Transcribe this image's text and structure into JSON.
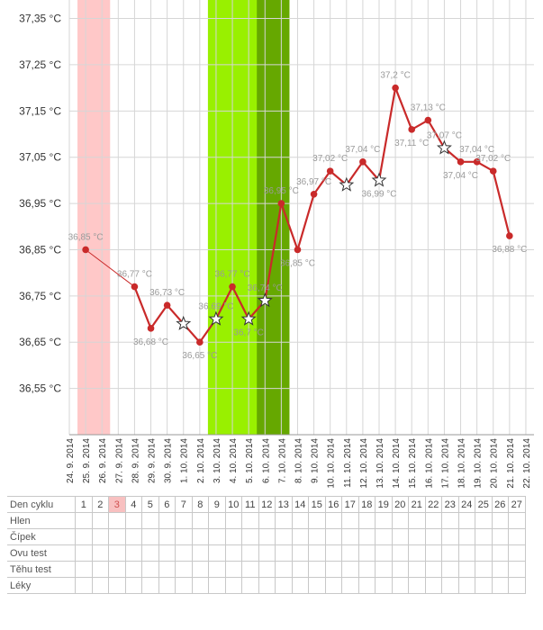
{
  "chart_data": {
    "type": "line",
    "y_unit": " °C",
    "ylim": [
      36.45,
      37.39
    ],
    "yticks": [
      "37,35 °C",
      "37,25 °C",
      "37,15 °C",
      "37,05 °C",
      "36,95 °C",
      "36,85 °C",
      "36,75 °C",
      "36,65 °C",
      "36,55 °C"
    ],
    "ytick_values": [
      37.35,
      37.25,
      37.15,
      37.05,
      36.95,
      36.85,
      36.75,
      36.65,
      36.55
    ],
    "x_dates": [
      "24. 9. 2014",
      "25. 9. 2014",
      "26. 9. 2014",
      "27. 9. 2014",
      "28. 9. 2014",
      "29. 9. 2014",
      "30. 9. 2014",
      "1. 10. 2014",
      "2. 10. 2014",
      "3. 10. 2014",
      "4. 10. 2014",
      "5. 10. 2014",
      "6. 10. 2014",
      "7. 10. 2014",
      "8. 10. 2014",
      "9. 10. 2014",
      "10. 10. 2014",
      "11. 10. 2014",
      "12. 10. 2014",
      "13. 10. 2014",
      "14. 10. 2014",
      "15. 10. 2014",
      "16. 10. 2014",
      "17. 10. 2014",
      "18. 10. 2014",
      "19. 10. 2014",
      "20. 10. 2014",
      "21. 10. 2014",
      "22. 10. 2014"
    ],
    "points": [
      {
        "x": "25. 9. 2014",
        "y": 36.85,
        "label": "36,85 °C",
        "marker": "dot"
      },
      {
        "x": "28. 9. 2014",
        "y": 36.77,
        "label": "36,77 °C",
        "marker": "dot"
      },
      {
        "x": "29. 9. 2014",
        "y": 36.68,
        "label": "36,68 °C",
        "marker": "dot"
      },
      {
        "x": "30. 9. 2014",
        "y": 36.73,
        "label": "36,73 °C",
        "marker": "dot"
      },
      {
        "x": "1. 10. 2014",
        "y": 36.69,
        "label": "",
        "marker": "star"
      },
      {
        "x": "2. 10. 2014",
        "y": 36.65,
        "label": "36,65 °C",
        "marker": "dot"
      },
      {
        "x": "3. 10. 2014",
        "y": 36.7,
        "label": "36,69 °C",
        "marker": "star"
      },
      {
        "x": "4. 10. 2014",
        "y": 36.77,
        "label": "36,77 °C",
        "marker": "dot"
      },
      {
        "x": "5. 10. 2014",
        "y": 36.7,
        "label": "36,7 °C",
        "marker": "star"
      },
      {
        "x": "6. 10. 2014",
        "y": 36.74,
        "label": "36,74 °C",
        "marker": "star"
      },
      {
        "x": "7. 10. 2014",
        "y": 36.95,
        "label": "36,95 °C",
        "marker": "dot"
      },
      {
        "x": "8. 10. 2014",
        "y": 36.85,
        "label": "36,85 °C",
        "marker": "dot"
      },
      {
        "x": "9. 10. 2014",
        "y": 36.97,
        "label": "36,97 °C",
        "marker": "dot"
      },
      {
        "x": "10. 10. 2014",
        "y": 37.02,
        "label": "37,02 °C",
        "marker": "dot"
      },
      {
        "x": "11. 10. 2014",
        "y": 36.99,
        "label": "",
        "marker": "star"
      },
      {
        "x": "12. 10. 2014",
        "y": 37.04,
        "label": "37,04 °C",
        "marker": "dot"
      },
      {
        "x": "13. 10. 2014",
        "y": 37.0,
        "label": "36,99 °C",
        "marker": "star"
      },
      {
        "x": "14. 10. 2014",
        "y": 37.2,
        "label": "37,2 °C",
        "marker": "dot"
      },
      {
        "x": "15. 10. 2014",
        "y": 37.11,
        "label": "37,11 °C",
        "marker": "dot"
      },
      {
        "x": "16. 10. 2014",
        "y": 37.13,
        "label": "37,13 °C",
        "marker": "dot"
      },
      {
        "x": "17. 10. 2014",
        "y": 37.07,
        "label": "37,07 °C",
        "marker": "star"
      },
      {
        "x": "18. 10. 2014",
        "y": 37.04,
        "label": "37,04 °C",
        "marker": "dot"
      },
      {
        "x": "19. 10. 2014",
        "y": 37.04,
        "label": "37,04 °C",
        "marker": "dot"
      },
      {
        "x": "20. 10. 2014",
        "y": 37.02,
        "label": "37,02 °C",
        "marker": "dot"
      },
      {
        "x": "21. 10. 2014",
        "y": 36.88,
        "label": "36,88 °C",
        "marker": "dot"
      }
    ],
    "bands": [
      {
        "from": "25. 9. 2014",
        "to": "26. 9. 2014",
        "color": "#ffc8c8"
      },
      {
        "from": "3. 10. 2014",
        "to": "7. 10. 2014",
        "color": "#99f000"
      },
      {
        "from": "6. 10. 2014",
        "to": "7. 10. 2014",
        "color": "#66a800"
      }
    ],
    "line_color": "#c92a2a",
    "grid": true
  },
  "table": {
    "rows": [
      "Den cyklu",
      "Hlen",
      "Čípek",
      "Ovu test",
      "Těhu test",
      "Léky"
    ],
    "days": [
      "1",
      "2",
      "3",
      "4",
      "5",
      "6",
      "7",
      "8",
      "9",
      "10",
      "11",
      "12",
      "13",
      "14",
      "15",
      "16",
      "17",
      "18",
      "19",
      "20",
      "21",
      "22",
      "23",
      "24",
      "25",
      "26",
      "27"
    ],
    "highlight_day": "3"
  }
}
